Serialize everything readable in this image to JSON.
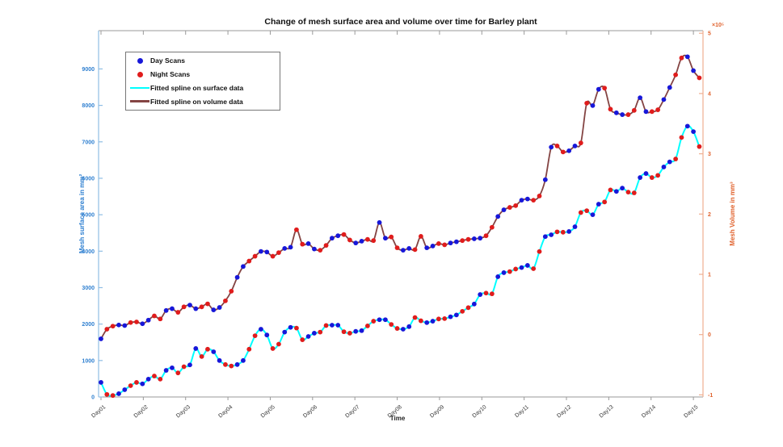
{
  "figure": {
    "background": "#ffffff"
  },
  "chart_data": {
    "type": "line",
    "title": "Change of mesh surface area and volume over time for Barley plant",
    "xlabel": "Time",
    "ylabel_left": "Mesh surface area in mm²",
    "ylabel_right": "Mesh Volume in mm³",
    "right_axis_multiplier": "×10⁵",
    "x_tick_labels": [
      "Day01",
      "Day02",
      "Day03",
      "Day04",
      "Day05",
      "Day06",
      "Day07",
      "Day08",
      "Day09",
      "Day10",
      "Day11",
      "Day12",
      "Day13",
      "Day14",
      "Day15"
    ],
    "left_ticks": [
      0,
      1000,
      2000,
      3000,
      4000,
      5000,
      6000,
      7000,
      8000,
      9000
    ],
    "right_ticks": [
      -1,
      0,
      1,
      2,
      3,
      4,
      5
    ],
    "x_range": [
      0.943,
      15.227
    ],
    "left_range": [
      0,
      10050
    ],
    "right_range": [
      -1.035,
      5.043
    ],
    "grid": false,
    "legend_position": "top-left-inside",
    "legend": [
      {
        "label": "Day Scans",
        "type": "marker",
        "color": "#1717D9"
      },
      {
        "label": "Night Scans",
        "type": "marker",
        "color": "#E01C1C"
      },
      {
        "label": "Fitted spline on surface data",
        "type": "line",
        "color": "#00FFFF"
      },
      {
        "label": "Fitted spline on volume data",
        "type": "line",
        "color": "#844443"
      }
    ],
    "colors": {
      "day_marker": "#1717D9",
      "night_marker": "#E01C1C",
      "surface_spline": "#00FFFF",
      "volume_spline": "#844443",
      "left_axis_line": "#8FBEE4",
      "left_axis_text": "#2E7FD0",
      "right_axis_line": "#F0AF91",
      "right_axis_text": "#E0622D",
      "x_axis_line": "#999999"
    },
    "series": {
      "t_days": [
        1.0,
        1.14,
        1.28,
        1.42,
        1.56,
        1.7,
        1.84,
        1.98,
        2.12,
        2.26,
        2.4,
        2.54,
        2.68,
        2.82,
        2.96,
        3.1,
        3.24,
        3.38,
        3.52,
        3.66,
        3.8,
        3.94,
        4.08,
        4.22,
        4.36,
        4.5,
        4.64,
        4.78,
        4.92,
        5.06,
        5.2,
        5.34,
        5.48,
        5.62,
        5.76,
        5.9,
        6.04,
        6.18,
        6.32,
        6.46,
        6.6,
        6.74,
        6.88,
        7.02,
        7.16,
        7.3,
        7.44,
        7.58,
        7.72,
        7.86,
        8.0,
        8.14,
        8.28,
        8.42,
        8.56,
        8.7,
        8.84,
        8.98,
        9.12,
        9.26,
        9.4,
        9.54,
        9.68,
        9.82,
        9.96,
        10.1,
        10.24,
        10.38,
        10.52,
        10.66,
        10.8,
        10.94,
        11.08,
        11.22,
        11.36,
        11.5,
        11.64,
        11.78,
        11.92,
        12.06,
        12.2,
        12.34,
        12.48,
        12.62,
        12.76,
        12.9,
        13.04,
        13.18,
        13.32,
        13.46,
        13.6,
        13.74,
        13.88,
        14.02,
        14.16,
        14.3,
        14.44,
        14.58,
        14.72,
        14.86,
        15.0,
        15.14
      ],
      "surface_mm2": [
        400,
        70,
        40,
        90,
        200,
        310,
        400,
        360,
        490,
        575,
        490,
        730,
        800,
        660,
        830,
        880,
        1330,
        1110,
        1310,
        1240,
        1000,
        890,
        850,
        890,
        1000,
        1310,
        1680,
        1860,
        1700,
        1330,
        1450,
        1780,
        1910,
        1890,
        1570,
        1660,
        1750,
        1780,
        1960,
        1970,
        1970,
        1790,
        1750,
        1800,
        1820,
        1950,
        2080,
        2120,
        2120,
        1990,
        1880,
        1860,
        1930,
        2180,
        2090,
        2040,
        2080,
        2140,
        2150,
        2200,
        2250,
        2350,
        2450,
        2550,
        2810,
        2850,
        2830,
        3300,
        3410,
        3440,
        3510,
        3550,
        3610,
        3520,
        3990,
        4400,
        4450,
        4530,
        4520,
        4540,
        4670,
        5060,
        5110,
        5000,
        5290,
        5350,
        5680,
        5640,
        5730,
        5620,
        5600,
        6020,
        6130,
        6020,
        6080,
        6310,
        6450,
        6530,
        7120,
        7430,
        7280,
        6870
      ],
      "volume_1e5_mm3": [
        -0.07,
        0.09,
        0.14,
        0.16,
        0.15,
        0.2,
        0.21,
        0.18,
        0.24,
        0.31,
        0.26,
        0.4,
        0.43,
        0.37,
        0.46,
        0.49,
        0.43,
        0.46,
        0.51,
        0.41,
        0.45,
        0.56,
        0.72,
        0.95,
        1.13,
        1.22,
        1.3,
        1.38,
        1.37,
        1.3,
        1.36,
        1.43,
        1.45,
        1.74,
        1.5,
        1.51,
        1.42,
        1.4,
        1.48,
        1.6,
        1.64,
        1.66,
        1.57,
        1.52,
        1.55,
        1.58,
        1.56,
        1.86,
        1.6,
        1.62,
        1.44,
        1.4,
        1.43,
        1.41,
        1.63,
        1.44,
        1.47,
        1.51,
        1.49,
        1.52,
        1.54,
        1.56,
        1.58,
        1.59,
        1.6,
        1.64,
        1.78,
        1.96,
        2.07,
        2.11,
        2.14,
        2.23,
        2.25,
        2.23,
        2.3,
        2.57,
        3.11,
        3.13,
        3.03,
        3.05,
        3.13,
        3.18,
        3.84,
        3.8,
        4.07,
        4.09,
        3.74,
        3.68,
        3.65,
        3.65,
        3.72,
        3.93,
        3.7,
        3.7,
        3.73,
        3.9,
        4.1,
        4.31,
        4.59,
        4.61,
        4.38,
        4.26
      ],
      "scan_type": [
        "D",
        "N",
        "N",
        "D",
        "D",
        "N",
        "N",
        "D",
        "D",
        "N",
        "N",
        "D",
        "D",
        "N",
        "N",
        "D",
        "D",
        "N",
        "N",
        "D",
        "D",
        "N",
        "N",
        "D",
        "D",
        "N",
        "N",
        "D",
        "D",
        "N",
        "N",
        "D",
        "D",
        "N",
        "N",
        "D",
        "D",
        "N",
        "N",
        "D",
        "D",
        "N",
        "N",
        "D",
        "D",
        "N",
        "N",
        "D",
        "D",
        "N",
        "N",
        "D",
        "D",
        "N",
        "N",
        "D",
        "D",
        "N",
        "N",
        "D",
        "D",
        "N",
        "N",
        "D",
        "D",
        "N",
        "N",
        "D",
        "D",
        "N",
        "N",
        "D",
        "D",
        "N",
        "N",
        "D",
        "D",
        "N",
        "N",
        "D",
        "D",
        "N",
        "N",
        "D",
        "D",
        "N",
        "N",
        "D",
        "D",
        "N",
        "N",
        "D",
        "D",
        "N",
        "N",
        "D",
        "D",
        "N",
        "N",
        "D",
        "D",
        "N"
      ]
    }
  }
}
